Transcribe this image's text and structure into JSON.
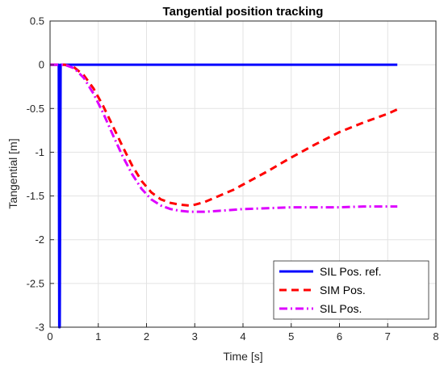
{
  "chart_data": {
    "type": "line",
    "title": "Tangential position tracking",
    "xlabel": "Time [s]",
    "ylabel": "Tangential [m]",
    "xlim": [
      0,
      8
    ],
    "ylim": [
      -3,
      0.5
    ],
    "xticks": [
      0,
      1,
      2,
      3,
      4,
      5,
      6,
      7,
      8
    ],
    "yticks": [
      0.5,
      0,
      -0.5,
      -1,
      -1.5,
      -2,
      -2.5,
      -3
    ],
    "x_tick_labels": [
      "0",
      "1",
      "2",
      "3",
      "4",
      "5",
      "6",
      "7",
      "8"
    ],
    "y_tick_labels": [
      "0.5",
      "0",
      "-0.5",
      "-1",
      "-1.5",
      "-2",
      "-2.5",
      "-3"
    ],
    "grid": true,
    "legend_position": "bottom-right",
    "series": [
      {
        "name": "SIL Pos. ref.",
        "color": "#0000ff",
        "style": "solid",
        "x": [
          0,
          0.18,
          0.19,
          0.2,
          0.22,
          0.23,
          7.2
        ],
        "y": [
          0,
          0,
          -3,
          -3,
          0,
          0,
          0
        ]
      },
      {
        "name": "SIM Pos.",
        "color": "#ff0000",
        "style": "dashed",
        "x": [
          0,
          0.3,
          0.5,
          0.7,
          0.9,
          1.1,
          1.3,
          1.5,
          1.7,
          1.9,
          2.1,
          2.3,
          2.5,
          2.7,
          2.9,
          3.0,
          3.2,
          3.5,
          3.8,
          4.0,
          4.5,
          5.0,
          5.5,
          6.0,
          6.5,
          7.0,
          7.2
        ],
        "y": [
          0,
          0,
          -0.03,
          -0.12,
          -0.27,
          -0.47,
          -0.7,
          -0.93,
          -1.15,
          -1.33,
          -1.46,
          -1.54,
          -1.58,
          -1.6,
          -1.61,
          -1.6,
          -1.57,
          -1.5,
          -1.43,
          -1.37,
          -1.22,
          -1.06,
          -0.91,
          -0.77,
          -0.66,
          -0.56,
          -0.51
        ]
      },
      {
        "name": "SIL Pos.",
        "color": "#dd00ff",
        "style": "dashdot",
        "x": [
          0,
          0.3,
          0.5,
          0.7,
          0.9,
          1.1,
          1.3,
          1.5,
          1.7,
          1.9,
          2.1,
          2.3,
          2.5,
          2.7,
          2.9,
          3.0,
          3.2,
          3.5,
          4.0,
          4.5,
          5.0,
          5.5,
          6.0,
          6.5,
          7.0,
          7.2
        ],
        "y": [
          0,
          0,
          -0.04,
          -0.15,
          -0.33,
          -0.55,
          -0.8,
          -1.04,
          -1.25,
          -1.42,
          -1.54,
          -1.61,
          -1.65,
          -1.67,
          -1.68,
          -1.68,
          -1.68,
          -1.67,
          -1.65,
          -1.64,
          -1.63,
          -1.63,
          -1.63,
          -1.62,
          -1.62,
          -1.62
        ]
      }
    ]
  }
}
